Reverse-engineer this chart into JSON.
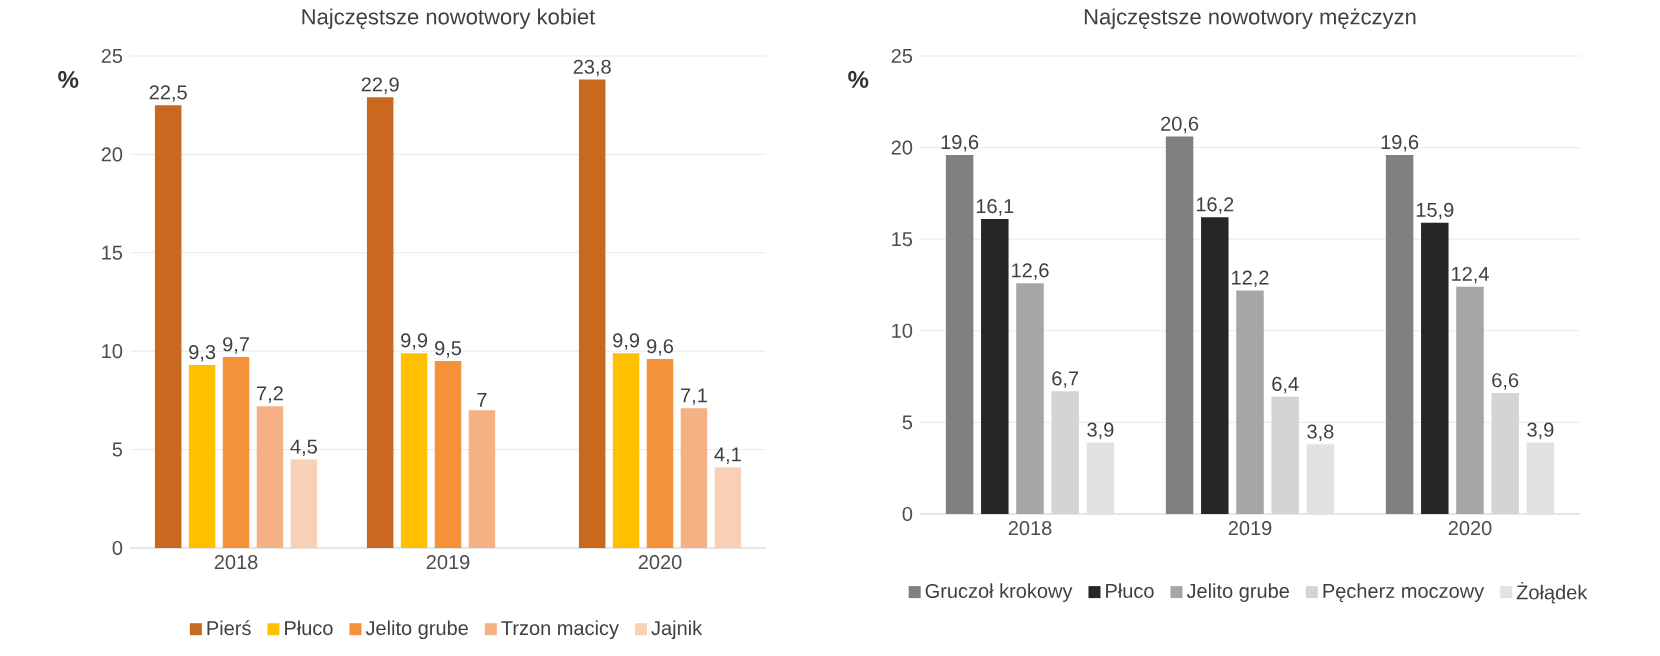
{
  "chart_data": [
    {
      "type": "bar",
      "title": "Najczęstsze nowotwory kobiet",
      "ylabel": "%",
      "categories": [
        "2018",
        "2019",
        "2020"
      ],
      "ylim": [
        0,
        25
      ],
      "yticks": [
        0,
        5,
        10,
        15,
        20,
        25
      ],
      "grid": "y",
      "legend": "bottom",
      "series": [
        {
          "name": "Pierś",
          "color": "#c8691f",
          "values": [
            22.5,
            22.9,
            23.8
          ],
          "value_labels": [
            "22,5",
            "22,9",
            "23,8"
          ]
        },
        {
          "name": "Płuco",
          "color": "#ffc000",
          "values": [
            9.3,
            9.9,
            9.9
          ],
          "value_labels": [
            "9,3",
            "9,9",
            "9,9"
          ]
        },
        {
          "name": "Jelito grube",
          "color": "#f4923a",
          "values": [
            9.7,
            9.5,
            9.6
          ],
          "value_labels": [
            "9,7",
            "9,5",
            "9,6"
          ]
        },
        {
          "name": "Trzon macicy",
          "color": "#f4b183",
          "values": [
            7.2,
            7,
            7.1
          ],
          "value_labels": [
            "7,2",
            "7",
            "7,1"
          ]
        },
        {
          "name": "Jajnik",
          "color": "#f8d0b5",
          "values": [
            4.5,
            null,
            4.1
          ],
          "value_labels": [
            "4,5",
            null,
            "4,1"
          ]
        }
      ]
    },
    {
      "type": "bar",
      "title": "Najczęstsze nowotwory mężczyzn",
      "ylabel": "%",
      "categories": [
        "2018",
        "2019",
        "2020"
      ],
      "ylim": [
        0,
        25
      ],
      "yticks": [
        0,
        5,
        10,
        15,
        20,
        25
      ],
      "grid": "y",
      "legend": "bottom",
      "series": [
        {
          "name": "Gruczoł krokowy",
          "color": "#808080",
          "values": [
            19.6,
            20.6,
            19.6
          ],
          "value_labels": [
            "19,6",
            "20,6",
            "19,6"
          ]
        },
        {
          "name": "Płuco",
          "color": "#262626",
          "values": [
            16.1,
            16.2,
            15.9
          ],
          "value_labels": [
            "16,1",
            "16,2",
            "15,9"
          ]
        },
        {
          "name": "Jelito grube",
          "color": "#a6a6a6",
          "values": [
            12.6,
            12.2,
            12.4
          ],
          "value_labels": [
            "12,6",
            "12,2",
            "12,4"
          ]
        },
        {
          "name": "Pęcherz moczowy",
          "color": "#d4d4d4",
          "values": [
            6.7,
            6.4,
            6.6
          ],
          "value_labels": [
            "6,7",
            "6,4",
            "6,6"
          ]
        },
        {
          "name": "Żołądek",
          "color": "#e2e2e2",
          "values": [
            3.9,
            3.8,
            3.9
          ],
          "value_labels": [
            "3,9",
            "3,8",
            "3,9"
          ]
        }
      ]
    }
  ]
}
